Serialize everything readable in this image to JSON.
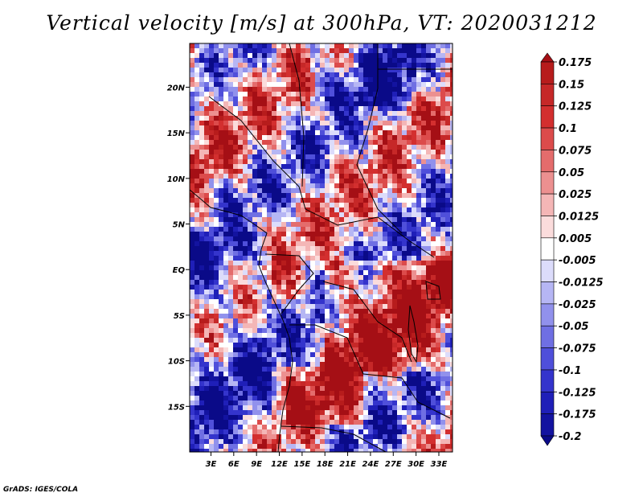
{
  "chart_data": {
    "type": "heatmap",
    "title": "Vertical velocity [m/s] at 300hPa, VT: 2020031212",
    "variable": "Vertical velocity",
    "units": "m/s",
    "level": "300hPa",
    "valid_time": "2020031212",
    "x_ticks": [
      "3E",
      "6E",
      "9E",
      "12E",
      "15E",
      "18E",
      "21E",
      "24E",
      "27E",
      "30E",
      "33E"
    ],
    "x_tick_values": [
      3,
      6,
      9,
      12,
      15,
      18,
      21,
      24,
      27,
      30,
      33
    ],
    "y_ticks": [
      "20N",
      "15N",
      "10N",
      "5N",
      "EQ",
      "5S",
      "10S",
      "15S"
    ],
    "y_tick_values": [
      20,
      15,
      10,
      5,
      0,
      -5,
      -10,
      -15
    ],
    "xlim": [
      0.2,
      34.8
    ],
    "ylim": [
      -20.0,
      24.8
    ],
    "colorbar_levels": [
      "0.175",
      "0.15",
      "0.125",
      "0.1",
      "0.075",
      "0.05",
      "0.025",
      "0.0125",
      "0.005",
      "-0.005",
      "-0.0125",
      "-0.025",
      "-0.05",
      "-0.075",
      "-0.1",
      "-0.125",
      "-0.175",
      "-0.2"
    ],
    "colorbar_colors": [
      "#a50f15",
      "#b71c1c",
      "#c62828",
      "#d32f2f",
      "#dc4b4b",
      "#e46c6c",
      "#ec9090",
      "#f4b6b6",
      "#fbdcdc",
      "#ffffff",
      "#dcdcfb",
      "#b6b6f4",
      "#9191ec",
      "#6f6fe3",
      "#4f4fda",
      "#3434cc",
      "#1f1fb8",
      "#1313a0",
      "#0a0a88"
    ]
  },
  "footer": "GrADS: IGES/COLA"
}
